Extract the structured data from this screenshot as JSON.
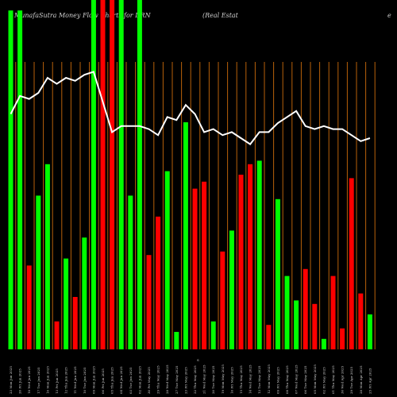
{
  "header": {
    "left": "MunafaSutra  Money Flow  Charts for DRN",
    "middle": "(Real Estat",
    "right": "e"
  },
  "chart_data": {
    "type": "bar",
    "series_note": "money flow bars with overlay line",
    "colors": {
      "up": "#00ff00",
      "down": "#ff0000",
      "grid": "#b8610a",
      "line": "#ffffff",
      "background": "#000000"
    },
    "ylim": [
      0,
      100
    ],
    "bars": [
      {
        "x": 1,
        "value": 97,
        "color": "up"
      },
      {
        "x": 2,
        "value": 97,
        "color": "up"
      },
      {
        "x": 3,
        "value": 24,
        "color": "down"
      },
      {
        "x": 4,
        "value": 44,
        "color": "up"
      },
      {
        "x": 5,
        "value": 53,
        "color": "up"
      },
      {
        "x": 6,
        "value": 8,
        "color": "down"
      },
      {
        "x": 7,
        "value": 26,
        "color": "up"
      },
      {
        "x": 8,
        "value": 15,
        "color": "down"
      },
      {
        "x": 9,
        "value": 32,
        "color": "up"
      },
      {
        "x": 10,
        "value": 100,
        "color": "up"
      },
      {
        "x": 11,
        "value": 100,
        "color": "down"
      },
      {
        "x": 12,
        "value": 100,
        "color": "down"
      },
      {
        "x": 13,
        "value": 100,
        "color": "up"
      },
      {
        "x": 14,
        "value": 44,
        "color": "up"
      },
      {
        "x": 15,
        "value": 100,
        "color": "up"
      },
      {
        "x": 16,
        "value": 27,
        "color": "down"
      },
      {
        "x": 17,
        "value": 38,
        "color": "down"
      },
      {
        "x": 18,
        "value": 51,
        "color": "up"
      },
      {
        "x": 19,
        "value": 5,
        "color": "up"
      },
      {
        "x": 20,
        "value": 65,
        "color": "up"
      },
      {
        "x": 21,
        "value": 46,
        "color": "down"
      },
      {
        "x": 22,
        "value": 48,
        "color": "down"
      },
      {
        "x": 23,
        "value": 8,
        "color": "up"
      },
      {
        "x": 24,
        "value": 28,
        "color": "down"
      },
      {
        "x": 25,
        "value": 34,
        "color": "up"
      },
      {
        "x": 26,
        "value": 50,
        "color": "down"
      },
      {
        "x": 27,
        "value": 53,
        "color": "down"
      },
      {
        "x": 28,
        "value": 54,
        "color": "up"
      },
      {
        "x": 29,
        "value": 7,
        "color": "down"
      },
      {
        "x": 30,
        "value": 43,
        "color": "up"
      },
      {
        "x": 31,
        "value": 21,
        "color": "up"
      },
      {
        "x": 32,
        "value": 14,
        "color": "up"
      },
      {
        "x": 33,
        "value": 23,
        "color": "down"
      },
      {
        "x": 34,
        "value": 13,
        "color": "down"
      },
      {
        "x": 35,
        "value": 3,
        "color": "up"
      },
      {
        "x": 36,
        "value": 21,
        "color": "down"
      },
      {
        "x": 37,
        "value": 6,
        "color": "down"
      },
      {
        "x": 38,
        "value": 49,
        "color": "down"
      },
      {
        "x": 39,
        "value": 16,
        "color": "down"
      },
      {
        "x": 40,
        "value": 10,
        "color": "up"
      }
    ],
    "line": [
      78,
      84,
      83,
      85,
      90,
      88,
      90,
      89,
      91,
      92,
      82,
      72,
      74,
      74,
      74,
      73,
      71,
      77,
      76,
      81,
      78,
      72,
      73,
      71,
      72,
      70,
      68,
      72,
      72,
      75,
      77,
      79,
      74,
      73,
      74,
      73,
      73,
      71,
      69,
      70
    ],
    "x_tick_labels": [
      "23 Mon Jun 2025",
      "20 Fri Jun 2025",
      "18 Wed Jun 2025",
      "17 Tue Jun 2025",
      "16 Mon Jun 2025",
      "13 Fri Jun 2025",
      "12 Thu Jun 2025",
      "11 Wed Jun 2025",
      "10 Tue Jun 2025",
      "09 Mon Jun 2025",
      "06 Fri Jun 2025",
      "05 Thu Jun 2025",
      "04 Wed Jun 2025",
      "03 Tue Jun 2025",
      "02 Mon Jun 2025",
      "30 Fri May 2025",
      "29 Thu May 2025",
      "28 Wed May 2025",
      "27 Tue May 2025",
      "23 Fri May 2025",
      "22 Thu May 2025",
      "21 Wed May 2025",
      "20 Tue May 2025",
      "19 Mon May 2025",
      "16 Fri May 2025",
      "15 Thu May 2025",
      "14 Wed May 2025",
      "13 Tue May 2025",
      "12 Mon May 2025",
      "09 Fri May 2025",
      "08 Thu May 2025",
      "07 Wed May 2025",
      "06 Tue May 2025",
      "05 Mon May 2025",
      "02 Fri May 2025",
      "01 Thu May 2025",
      "30 Wed Apr 2025",
      "29 Tue Apr 2025",
      "28 Mon Apr 2025",
      "25 Fri Apr 2025"
    ],
    "center_tick": "S"
  }
}
